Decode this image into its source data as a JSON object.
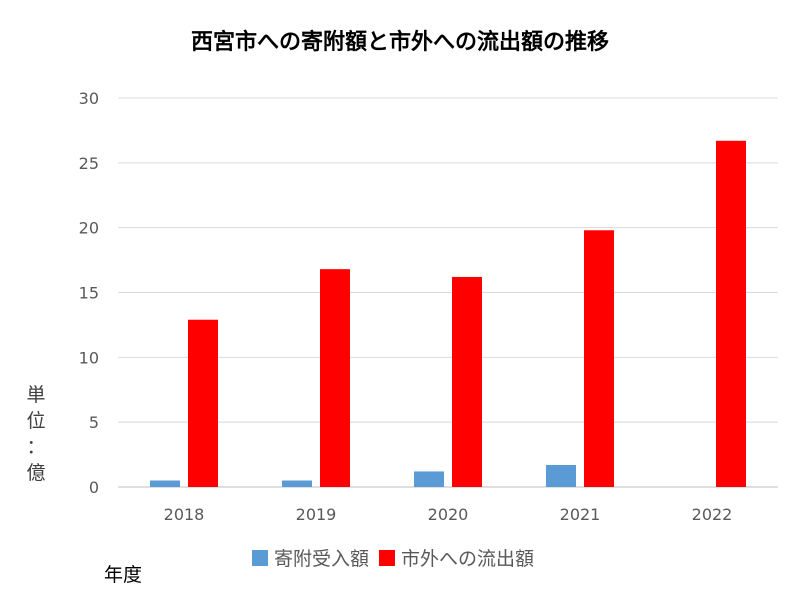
{
  "chart_data": {
    "type": "bar",
    "title": "西宮市への寄附額と市外への流出額の推移",
    "ylabel": "単位：億",
    "xlabel": "年度",
    "categories": [
      "2018",
      "2019",
      "2020",
      "2021",
      "2022"
    ],
    "ylim": [
      0,
      30
    ],
    "yticks": [
      0,
      5,
      10,
      15,
      20,
      25,
      30
    ],
    "grid": true,
    "legend_position": "bottom",
    "series": [
      {
        "name": "寄附受入額",
        "color": "#5b9bd5",
        "values": [
          0.5,
          0.5,
          1.2,
          1.7,
          null
        ]
      },
      {
        "name": "市外への流出額",
        "color": "#ff0000",
        "values": [
          12.9,
          16.8,
          16.2,
          19.8,
          26.7
        ]
      }
    ]
  }
}
